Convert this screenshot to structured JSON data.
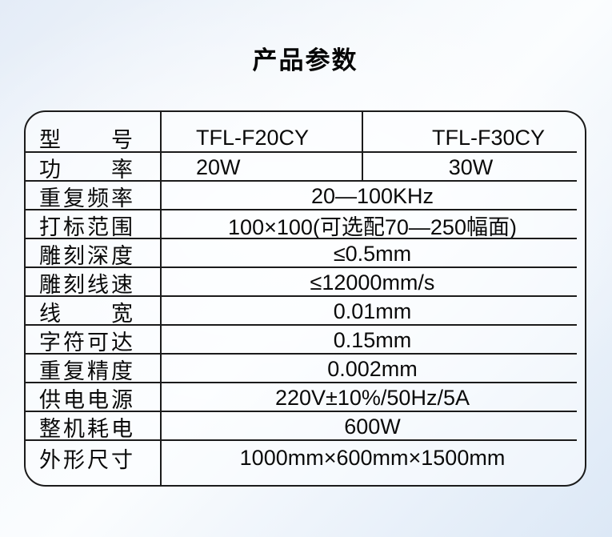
{
  "page": {
    "title": "产品参数"
  },
  "colors": {
    "border": "#1b1b1b",
    "text": "#0a0a0a",
    "background_edge": "#dce8f6",
    "background_center": "#fcfdfe"
  },
  "table": {
    "models": [
      "TFL-F20CY",
      "TFL-F30CY"
    ],
    "rows": [
      {
        "label": "型　　号",
        "col2": "TFL-F20CY",
        "col3": "TFL-F30CY"
      },
      {
        "label": "功　　率",
        "col2": "20W",
        "col3": "30W"
      },
      {
        "label": "重复频率",
        "value": "20—100KHz"
      },
      {
        "label": "打标范围",
        "value": "100×100(可选配70—250幅面)"
      },
      {
        "label": "雕刻深度",
        "value": "≤0.5mm"
      },
      {
        "label": "雕刻线速",
        "value": "≤12000mm/s"
      },
      {
        "label": "线　　宽",
        "value": "0.01mm"
      },
      {
        "label": "字符可达",
        "value": "0.15mm"
      },
      {
        "label": "重复精度",
        "value": "0.002mm"
      },
      {
        "label": "供电电源",
        "value": "220V±10%/50Hz/5A"
      },
      {
        "label": "整机耗电",
        "value": "600W"
      },
      {
        "label": "外形尺寸",
        "value": "1000mm×600mm×1500mm"
      }
    ]
  }
}
